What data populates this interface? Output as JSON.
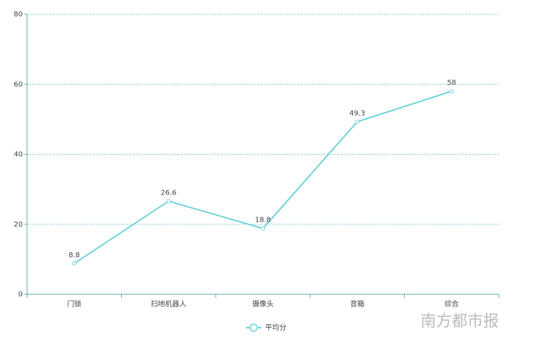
{
  "chart_data": {
    "type": "line",
    "categories": [
      "门锁",
      "扫地机器人",
      "摄像头",
      "音箱",
      "综合"
    ],
    "series": [
      {
        "name": "平均分",
        "color": "#6fd3d8",
        "values": [
          8.8,
          26.6,
          18.8,
          49.3,
          58
        ]
      }
    ],
    "ylim": [
      0,
      80
    ],
    "yticks": [
      0,
      20,
      40,
      60,
      80
    ],
    "grid": true,
    "legend": "bottom"
  },
  "watermark": "南方都市报"
}
